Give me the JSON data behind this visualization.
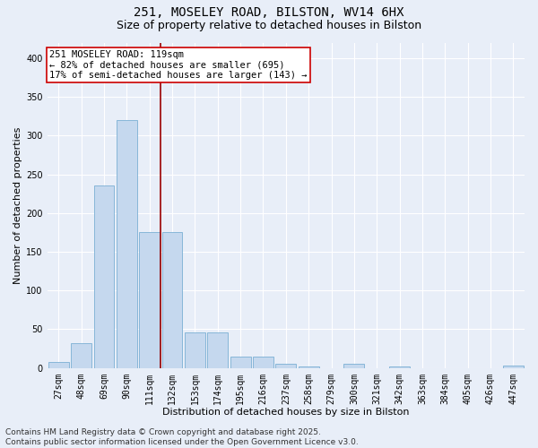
{
  "title_line1": "251, MOSELEY ROAD, BILSTON, WV14 6HX",
  "title_line2": "Size of property relative to detached houses in Bilston",
  "xlabel": "Distribution of detached houses by size in Bilston",
  "ylabel": "Number of detached properties",
  "categories": [
    "27sqm",
    "48sqm",
    "69sqm",
    "90sqm",
    "111sqm",
    "132sqm",
    "153sqm",
    "174sqm",
    "195sqm",
    "216sqm",
    "237sqm",
    "258sqm",
    "279sqm",
    "300sqm",
    "321sqm",
    "342sqm",
    "363sqm",
    "384sqm",
    "405sqm",
    "426sqm",
    "447sqm"
  ],
  "values": [
    8,
    32,
    236,
    320,
    175,
    175,
    46,
    46,
    15,
    15,
    6,
    2,
    0,
    5,
    0,
    2,
    0,
    0,
    0,
    0,
    3
  ],
  "bar_color": "#c5d8ee",
  "bar_edge_color": "#7aafd4",
  "vline_x_index": 4,
  "vline_color": "#9b0000",
  "annotation_text": "251 MOSELEY ROAD: 119sqm\n← 82% of detached houses are smaller (695)\n17% of semi-detached houses are larger (143) →",
  "annotation_box_facecolor": "#ffffff",
  "annotation_box_edgecolor": "#cc0000",
  "ylim": [
    0,
    420
  ],
  "yticks": [
    0,
    50,
    100,
    150,
    200,
    250,
    300,
    350,
    400
  ],
  "footer_text": "Contains HM Land Registry data © Crown copyright and database right 2025.\nContains public sector information licensed under the Open Government Licence v3.0.",
  "bg_color": "#e8eef8",
  "plot_bg_color": "#e8eef8",
  "grid_color": "#ffffff",
  "title1_fontsize": 10,
  "title2_fontsize": 9,
  "axis_label_fontsize": 8,
  "tick_fontsize": 7,
  "annotation_fontsize": 7.5,
  "footer_fontsize": 6.5
}
